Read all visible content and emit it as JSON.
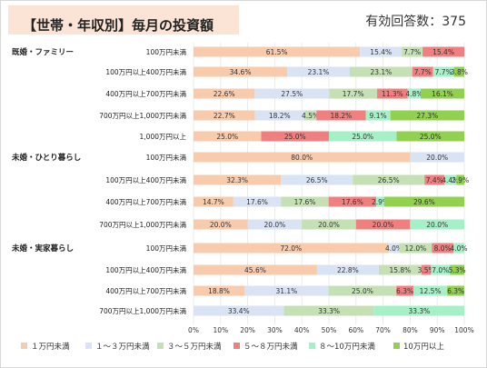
{
  "header": {
    "title": "【世帯・年収別】毎月の投資額",
    "respondents": "有効回答数：375"
  },
  "colors": [
    "#f8cbad",
    "#dae3f3",
    "#c5e0b4",
    "#f08080",
    "#a6f0c8",
    "#92d050"
  ],
  "chart_data": {
    "type": "bar",
    "orientation": "horizontal",
    "stacked": "percent",
    "xlim": [
      0,
      100
    ],
    "xticks": [
      "0%",
      "10%",
      "20%",
      "30%",
      "40%",
      "50%",
      "60%",
      "70%",
      "80%",
      "90%",
      "100%"
    ],
    "legend_position": "bottom",
    "series_names": [
      "１万円未満",
      "１～３万円未満",
      "３～５万円未満",
      "５～８万円未満",
      "８～10万円未満",
      "10万円以上"
    ],
    "groups": [
      {
        "name": "既婚・ファミリー",
        "rows": [
          {
            "category": "100万円未満",
            "values": [
              61.5,
              15.4,
              7.7,
              15.4,
              0,
              0
            ],
            "labels": [
              "61.5%",
              "15.4%",
              "7.7%",
              "15.4%",
              "",
              ""
            ]
          },
          {
            "category": "100万円以上400万円未満",
            "values": [
              34.6,
              23.1,
              23.1,
              7.7,
              7.7,
              3.8
            ],
            "labels": [
              "34.6%",
              "23.1%",
              "23.1%",
              "7.7%",
              "7.7%",
              "3.8%"
            ]
          },
          {
            "category": "400万円以上700万円未満",
            "values": [
              22.6,
              27.5,
              17.7,
              11.3,
              4.8,
              16.1
            ],
            "labels": [
              "22.6%",
              "27.5%",
              "17.7%",
              "11.3%",
              "4.8%",
              "16.1%"
            ]
          },
          {
            "category": "700万円以上1,000万円未満",
            "values": [
              22.7,
              18.2,
              4.5,
              18.2,
              9.1,
              27.3
            ],
            "labels": [
              "22.7%",
              "18.2%",
              "4.5%",
              "18.2%",
              "9.1%",
              "27.3%"
            ]
          },
          {
            "category": "1,000万円以上",
            "values": [
              25.0,
              0,
              0,
              25.0,
              25.0,
              25.0
            ],
            "labels": [
              "25.0%",
              "",
              "",
              "25.0%",
              "25.0%",
              "25.0%"
            ]
          }
        ]
      },
      {
        "name": "未婚・ひとり暮らし",
        "rows": [
          {
            "category": "100万円未満",
            "values": [
              80.0,
              20.0,
              0,
              0,
              0,
              0
            ],
            "labels": [
              "80.0%",
              "20.0%",
              "",
              "",
              "",
              ""
            ]
          },
          {
            "category": "100万円以上400万円未満",
            "values": [
              32.3,
              26.5,
              26.5,
              7.4,
              4.4,
              2.9
            ],
            "labels": [
              "32.3%",
              "26.5%",
              "26.5%",
              "7.4%",
              "4.4%",
              "2.9%"
            ]
          },
          {
            "category": "400万円以上700万円未満",
            "values": [
              14.7,
              17.6,
              17.6,
              17.6,
              2.9,
              29.6
            ],
            "labels": [
              "14.7%",
              "17.6%",
              "17.6%",
              "17.6%",
              "2.9%",
              "29.6%"
            ]
          },
          {
            "category": "700万円以上1,000万円未満",
            "values": [
              20.0,
              20.0,
              20.0,
              20.0,
              20.0,
              0
            ],
            "labels": [
              "20.0%",
              "20.0%",
              "20.0%",
              "20.0%",
              "20.0%",
              ""
            ]
          }
        ]
      },
      {
        "name": "未婚・実家暮らし",
        "rows": [
          {
            "category": "100万円未満",
            "values": [
              72.0,
              4.0,
              12.0,
              8.0,
              4.0,
              0
            ],
            "labels": [
              "72.0%",
              "4.0%",
              "12.0%",
              "8.0%",
              "4.0%",
              ""
            ]
          },
          {
            "category": "100万円以上400万円未満",
            "values": [
              45.6,
              22.8,
              15.8,
              3.5,
              7.0,
              5.3
            ],
            "labels": [
              "45.6%",
              "22.8%",
              "15.8%",
              "3.5%",
              "7.0%",
              "5.3%"
            ]
          },
          {
            "category": "400万円以上700万円未満",
            "values": [
              18.8,
              31.1,
              25.0,
              6.3,
              12.5,
              6.3
            ],
            "labels": [
              "18.8%",
              "31.1%",
              "25.0%",
              "6.3%",
              "12.5%",
              "6.3%"
            ]
          },
          {
            "category": "700万円以上1,000万円未満",
            "values": [
              0,
              33.4,
              33.3,
              0,
              33.3,
              0
            ],
            "labels": [
              "",
              "33.4%",
              "33.3%",
              "",
              "33.3%",
              ""
            ]
          }
        ]
      }
    ]
  }
}
